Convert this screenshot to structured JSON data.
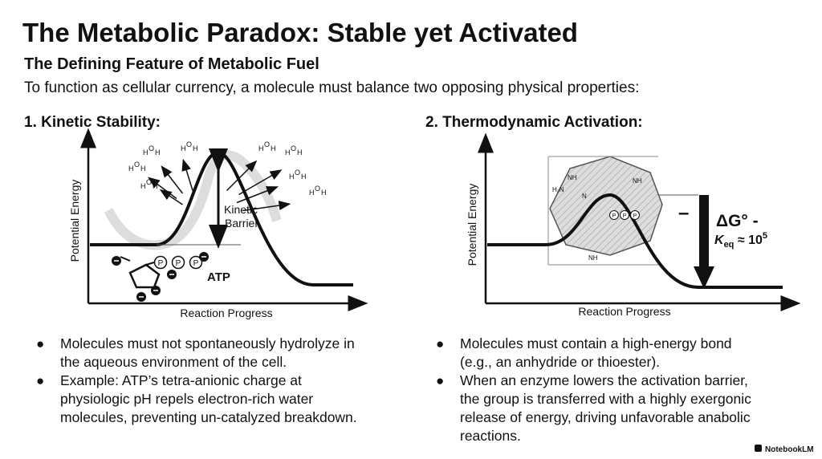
{
  "header": {
    "title": "The Metabolic Paradox: Stable yet Activated",
    "subtitle": "The Defining Feature of Metabolic Fuel",
    "intro": "To function as cellular currency, a molecule must balance two opposing physical properties:"
  },
  "panels": [
    {
      "heading": "1. Kinetic Stability:",
      "y_axis": "Potential Energy",
      "x_axis": "Reaction Progress",
      "barrier_label": [
        "Kinetic",
        "Barrier"
      ],
      "molecule": "ATP",
      "phosphate": "P",
      "water_atoms": {
        "h": "H",
        "o": "O"
      },
      "bullets": [
        [
          "Molecules must not spontaneously hydrolyze in",
          "the aqueous environment of the cell."
        ],
        [
          "Example: ATP’s tetra-anionic charge at",
          "physiologic pH repels electron-rich water",
          "molecules, preventing un-catalyzed breakdown."
        ]
      ]
    },
    {
      "heading": "2. Thermodynamic Activation:",
      "y_axis": "Potential Energy",
      "x_axis": "Reaction Progress",
      "delta_g": "ΔG° -",
      "keq": {
        "k": "K",
        "sub": "eq",
        "approx": " ≈ 10",
        "sup": "5"
      },
      "minus": "–",
      "enzyme_labels": [
        "NH",
        "H₂N",
        "NH",
        "N",
        "NH"
      ],
      "phosphate": "P",
      "bullets": [
        [
          "Molecules must contain a high-energy bond",
          "(e.g., an anhydride or thioester)."
        ],
        [
          "When an enzyme lowers the activation barrier,",
          "the group is transferred with a highly exergonic",
          "release of energy, driving unfavorable anabolic",
          "reactions."
        ]
      ]
    }
  ],
  "footer": "NotebookLM"
}
